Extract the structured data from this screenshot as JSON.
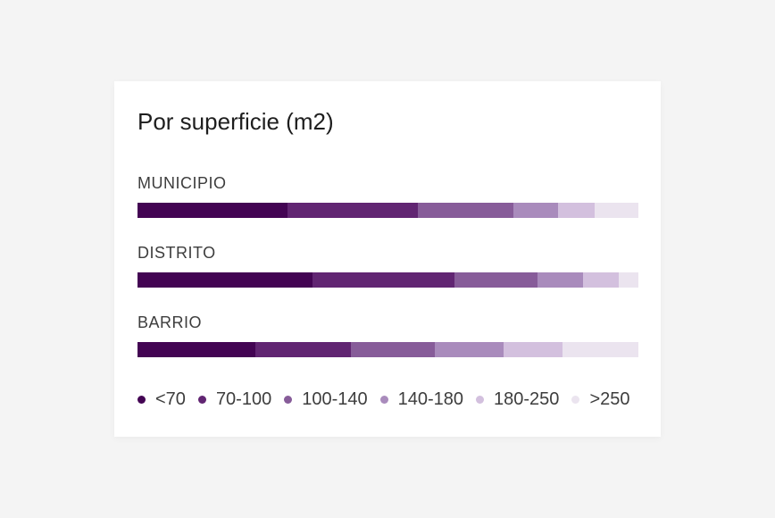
{
  "chart_data": {
    "type": "bar",
    "stacked": true,
    "orientation": "horizontal",
    "normalized": true,
    "title": "Por superficie (m2)",
    "categories": [
      "MUNICIPIO",
      "DISTRITO",
      "BARRIO"
    ],
    "series": [
      {
        "name": "<70",
        "color": "#430453",
        "values": [
          30.0,
          35.0,
          23.5
        ]
      },
      {
        "name": "70-100",
        "color": "#612572",
        "values": [
          26.0,
          28.2,
          19.1
        ]
      },
      {
        "name": "100-140",
        "color": "#875c99",
        "values": [
          19.0,
          16.7,
          16.8
        ]
      },
      {
        "name": "140-180",
        "color": "#a98bbc",
        "values": [
          9.0,
          9.1,
          13.7
        ]
      },
      {
        "name": "180-250",
        "color": "#d3c0de",
        "values": [
          7.2,
          7.1,
          11.8
        ]
      },
      {
        "name": ">250",
        "color": "#ebe4ef",
        "values": [
          8.8,
          3.9,
          15.1
        ]
      }
    ],
    "legend_position": "bottom",
    "grid": false
  }
}
